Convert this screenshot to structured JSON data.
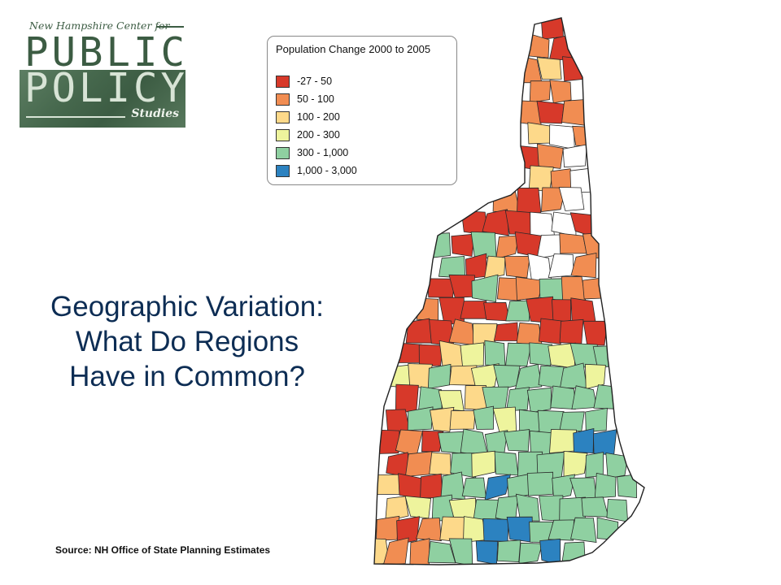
{
  "logo": {
    "tagline": "New Hampshire Center for",
    "word1": "PUBLIC",
    "word2": "POLICY",
    "word3": "Studies",
    "background_color": "#3c5c43"
  },
  "title": {
    "line1": "Geographic Variation:",
    "line2": "What Do Regions",
    "line3": "Have in Common?",
    "color": "#0d2d54"
  },
  "source": "Source: NH Office of State Planning Estimates",
  "legend": {
    "title": "Population Change 2000 to 2005",
    "classes": [
      {
        "label": "-27 - 50",
        "color": "#d7392a"
      },
      {
        "label": "50 - 100",
        "color": "#f18d52"
      },
      {
        "label": "100 - 200",
        "color": "#fdd98a"
      },
      {
        "label": "200 - 300",
        "color": "#eef49d"
      },
      {
        "label": "300 - 1,000",
        "color": "#8fd0a1"
      },
      {
        "label": "1,000 - 3,000",
        "color": "#2c82c0"
      }
    ],
    "no_data_color": "#ffffff"
  }
}
